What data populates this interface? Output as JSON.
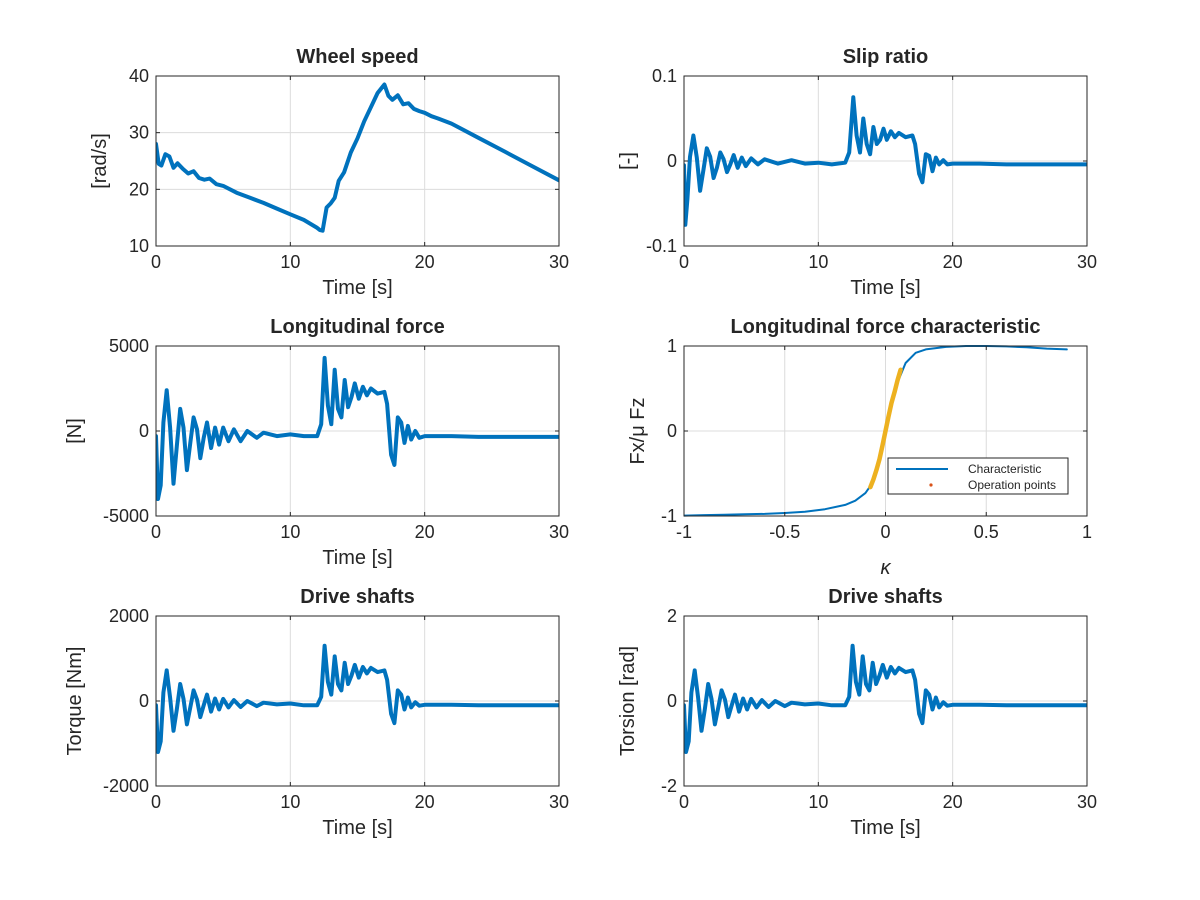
{
  "chart_data": [
    {
      "type": "line",
      "title": "Wheel speed",
      "xlabel": "Time [s]",
      "ylabel": "[rad/s]",
      "xlim": [
        0,
        30
      ],
      "ylim": [
        10,
        40
      ],
      "xticks": [
        0,
        10,
        20,
        30
      ],
      "yticks": [
        10,
        20,
        30,
        40
      ],
      "xtick_labels": [
        "0",
        "10",
        "20",
        "30"
      ],
      "ytick_labels": [
        "10",
        "20",
        "30",
        "40"
      ],
      "grid": true,
      "color": "#0072BD",
      "series": [
        {
          "x": [
            0,
            0.2,
            0.4,
            0.7,
            1.0,
            1.3,
            1.6,
            2.0,
            2.4,
            2.8,
            3.2,
            3.6,
            4.0,
            4.5,
            5.0,
            6,
            7,
            8,
            9,
            10,
            11,
            12,
            12.2,
            12.4,
            12.7,
            13.0,
            13.3,
            13.6,
            14.0,
            14.5,
            15.0,
            15.5,
            16.0,
            16.5,
            17.0,
            17.3,
            17.6,
            18.0,
            18.4,
            18.8,
            19.2,
            19.6,
            20.0,
            20.5,
            21,
            22,
            24,
            26,
            28,
            30
          ],
          "y": [
            28,
            24.5,
            24.2,
            26.2,
            25.8,
            23.8,
            24.6,
            23.6,
            22.8,
            23.2,
            22.0,
            21.7,
            21.9,
            20.9,
            20.6,
            19.4,
            18.5,
            17.6,
            16.6,
            15.6,
            14.6,
            13.2,
            12.8,
            12.7,
            16.8,
            17.5,
            18.5,
            21.5,
            23.0,
            26.5,
            29.0,
            32.0,
            34.5,
            37.0,
            38.5,
            36.5,
            35.8,
            36.6,
            35.0,
            35.2,
            34.2,
            33.8,
            33.5,
            32.9,
            32.5,
            31.6,
            29.1,
            26.6,
            24.1,
            21.6
          ]
        }
      ]
    },
    {
      "type": "line",
      "title": "Slip ratio",
      "xlabel": "Time [s]",
      "ylabel": "[-]",
      "xlim": [
        0,
        30
      ],
      "ylim": [
        -0.1,
        0.1
      ],
      "xticks": [
        0,
        10,
        20,
        30
      ],
      "yticks": [
        -0.1,
        0,
        0.1
      ],
      "xtick_labels": [
        "0",
        "10",
        "20",
        "30"
      ],
      "ytick_labels": [
        "-0.1",
        "0",
        "0.1"
      ],
      "grid": true,
      "color": "#0072BD",
      "series": [
        {
          "x": [
            0,
            0.1,
            0.25,
            0.45,
            0.7,
            0.95,
            1.2,
            1.45,
            1.7,
            1.95,
            2.2,
            2.45,
            2.7,
            2.95,
            3.2,
            3.45,
            3.7,
            4.0,
            4.3,
            4.6,
            5.0,
            5.5,
            6,
            7,
            8,
            9,
            10,
            11,
            12.0,
            12.3,
            12.6,
            12.85,
            13.1,
            13.35,
            13.6,
            13.85,
            14.1,
            14.35,
            14.6,
            14.85,
            15.1,
            15.4,
            15.7,
            16.0,
            16.5,
            17.0,
            17.2,
            17.5,
            17.75,
            18.0,
            18.25,
            18.5,
            18.75,
            19.0,
            19.3,
            19.6,
            20,
            21,
            22,
            24,
            26,
            28,
            30
          ],
          "y": [
            -0.005,
            -0.075,
            -0.045,
            0.005,
            0.03,
            0.004,
            -0.035,
            -0.01,
            0.015,
            0.005,
            -0.02,
            -0.008,
            0.01,
            0.002,
            -0.013,
            -0.004,
            0.007,
            -0.008,
            0.004,
            -0.006,
            0.003,
            -0.004,
            0.002,
            -0.003,
            0.001,
            -0.003,
            -0.002,
            -0.004,
            -0.002,
            0.01,
            0.075,
            0.03,
            0.01,
            0.05,
            0.02,
            0.008,
            0.04,
            0.02,
            0.025,
            0.038,
            0.025,
            0.035,
            0.028,
            0.033,
            0.028,
            0.03,
            0.02,
            -0.015,
            -0.025,
            0.008,
            0.006,
            -0.012,
            0.004,
            -0.004,
            0.001,
            -0.004,
            -0.003,
            -0.003,
            -0.003,
            -0.004,
            -0.004,
            -0.004,
            -0.004
          ]
        }
      ]
    },
    {
      "type": "line",
      "title": "Longitudinal force",
      "xlabel": "Time [s]",
      "ylabel": "[N]",
      "xlim": [
        0,
        30
      ],
      "ylim": [
        -5000,
        5000
      ],
      "xticks": [
        0,
        10,
        20,
        30
      ],
      "yticks": [
        -5000,
        0,
        5000
      ],
      "xtick_labels": [
        "0",
        "10",
        "20",
        "30"
      ],
      "ytick_labels": [
        "-5000",
        "0",
        "5000"
      ],
      "grid": true,
      "color": "#0072BD",
      "series": [
        {
          "x": [
            0,
            0.15,
            0.35,
            0.55,
            0.8,
            1.05,
            1.3,
            1.55,
            1.8,
            2.05,
            2.3,
            2.55,
            2.8,
            3.05,
            3.3,
            3.55,
            3.8,
            4.1,
            4.4,
            4.7,
            5.0,
            5.4,
            5.8,
            6.3,
            6.8,
            7.5,
            8,
            9,
            10,
            11,
            12.0,
            12.3,
            12.55,
            12.8,
            13.05,
            13.3,
            13.55,
            13.8,
            14.05,
            14.3,
            14.55,
            14.8,
            15.1,
            15.4,
            15.7,
            16.0,
            16.5,
            17.0,
            17.2,
            17.5,
            17.75,
            18.0,
            18.25,
            18.5,
            18.75,
            19.0,
            19.3,
            19.6,
            20,
            21,
            22,
            24,
            26,
            28,
            30
          ],
          "y": [
            -300,
            -4000,
            -3200,
            500,
            2400,
            200,
            -3100,
            -900,
            1300,
            200,
            -2300,
            -700,
            800,
            100,
            -1600,
            -400,
            500,
            -1000,
            200,
            -800,
            200,
            -600,
            100,
            -600,
            0,
            -400,
            -100,
            -300,
            -200,
            -300,
            -300,
            400,
            4300,
            1500,
            400,
            3600,
            1300,
            800,
            3000,
            1400,
            2000,
            2800,
            1900,
            2600,
            2100,
            2500,
            2200,
            2300,
            1600,
            -1400,
            -2000,
            800,
            500,
            -700,
            300,
            -500,
            0,
            -400,
            -300,
            -300,
            -300,
            -350,
            -350,
            -350,
            -350
          ]
        }
      ]
    },
    {
      "type": "line",
      "title": "Longitudinal force characteristic",
      "xlabel": "κ",
      "ylabel": "Fx/μ Fz",
      "xlim": [
        -1,
        1
      ],
      "ylim": [
        -1,
        1
      ],
      "xticks": [
        -1,
        -0.5,
        0,
        0.5,
        1
      ],
      "yticks": [
        -1,
        0,
        1
      ],
      "xtick_labels": [
        "-1",
        "-0.5",
        "0",
        "0.5",
        "1"
      ],
      "ytick_labels": [
        "-1",
        "0",
        "1"
      ],
      "grid": true,
      "legend": {
        "entries": [
          "Characteristic",
          "Operation points"
        ],
        "location": "lower-right"
      },
      "series": [
        {
          "name": "Characteristic",
          "color": "#0072BD",
          "x": [
            -1,
            -0.9,
            -0.8,
            -0.7,
            -0.6,
            -0.5,
            -0.4,
            -0.3,
            -0.2,
            -0.15,
            -0.1,
            -0.07,
            -0.05,
            -0.03,
            -0.01,
            0,
            0.01,
            0.03,
            0.05,
            0.07,
            0.1,
            0.15,
            0.2,
            0.3,
            0.4,
            0.5,
            0.6,
            0.7,
            0.8,
            0.9
          ],
          "y": [
            -0.995,
            -0.99,
            -0.985,
            -0.98,
            -0.975,
            -0.965,
            -0.95,
            -0.92,
            -0.87,
            -0.82,
            -0.73,
            -0.63,
            -0.5,
            -0.33,
            -0.12,
            0,
            0.12,
            0.33,
            0.5,
            0.63,
            0.8,
            0.92,
            0.96,
            0.99,
            1.0,
            1.0,
            0.995,
            0.985,
            0.97,
            0.96
          ]
        },
        {
          "name": "Operation points",
          "color": "#EDB120",
          "marker_color": "#D95319",
          "x": [
            -0.075,
            -0.06,
            -0.045,
            -0.03,
            -0.015,
            0,
            0.015,
            0.03,
            0.045,
            0.06,
            0.075
          ],
          "y": [
            -0.66,
            -0.57,
            -0.46,
            -0.33,
            -0.17,
            0,
            0.17,
            0.33,
            0.46,
            0.6,
            0.72
          ]
        }
      ]
    },
    {
      "type": "line",
      "title": "Drive shafts",
      "xlabel": "Time [s]",
      "ylabel": "Torque [Nm]",
      "xlim": [
        0,
        30
      ],
      "ylim": [
        -2000,
        2000
      ],
      "xticks": [
        0,
        10,
        20,
        30
      ],
      "yticks": [
        -2000,
        0,
        2000
      ],
      "xtick_labels": [
        "0",
        "10",
        "20",
        "30"
      ],
      "ytick_labels": [
        "-2000",
        "0",
        "2000"
      ],
      "grid": true,
      "color": "#0072BD",
      "series": [
        {
          "x": [
            0,
            0.15,
            0.35,
            0.55,
            0.8,
            1.05,
            1.3,
            1.55,
            1.8,
            2.05,
            2.3,
            2.55,
            2.8,
            3.05,
            3.3,
            3.55,
            3.8,
            4.1,
            4.4,
            4.7,
            5.0,
            5.4,
            5.8,
            6.3,
            6.8,
            7.5,
            8,
            9,
            10,
            11,
            12.0,
            12.3,
            12.55,
            12.8,
            13.05,
            13.3,
            13.55,
            13.8,
            14.05,
            14.3,
            14.55,
            14.8,
            15.1,
            15.4,
            15.7,
            16.0,
            16.5,
            17.0,
            17.2,
            17.5,
            17.75,
            18.0,
            18.25,
            18.5,
            18.75,
            19.0,
            19.3,
            19.6,
            20,
            21,
            22,
            24,
            26,
            28,
            30
          ],
          "y": [
            -100,
            -1200,
            -950,
            200,
            720,
            80,
            -700,
            -200,
            400,
            50,
            -550,
            -150,
            250,
            30,
            -380,
            -100,
            150,
            -250,
            60,
            -200,
            50,
            -150,
            20,
            -140,
            0,
            -120,
            -40,
            -80,
            -60,
            -100,
            -100,
            100,
            1300,
            450,
            150,
            1050,
            400,
            250,
            900,
            400,
            600,
            850,
            550,
            800,
            650,
            780,
            680,
            720,
            500,
            -300,
            -520,
            250,
            150,
            -200,
            80,
            -150,
            -30,
            -110,
            -90,
            -90,
            -90,
            -100,
            -100,
            -100,
            -100
          ]
        }
      ]
    },
    {
      "type": "line",
      "title": "Drive shafts",
      "xlabel": "Time [s]",
      "ylabel": "Torsion [rad]",
      "xlim": [
        0,
        30
      ],
      "ylim": [
        -2,
        2
      ],
      "xticks": [
        0,
        10,
        20,
        30
      ],
      "yticks": [
        -2,
        0,
        2
      ],
      "xtick_labels": [
        "0",
        "10",
        "20",
        "30"
      ],
      "ytick_labels": [
        "-2",
        "0",
        "2"
      ],
      "grid": true,
      "color": "#0072BD",
      "series": [
        {
          "x": [
            0,
            0.15,
            0.35,
            0.55,
            0.8,
            1.05,
            1.3,
            1.55,
            1.8,
            2.05,
            2.3,
            2.55,
            2.8,
            3.05,
            3.3,
            3.55,
            3.8,
            4.1,
            4.4,
            4.7,
            5.0,
            5.4,
            5.8,
            6.3,
            6.8,
            7.5,
            8,
            9,
            10,
            11,
            12.0,
            12.3,
            12.55,
            12.8,
            13.05,
            13.3,
            13.55,
            13.8,
            14.05,
            14.3,
            14.55,
            14.8,
            15.1,
            15.4,
            15.7,
            16.0,
            16.5,
            17.0,
            17.2,
            17.5,
            17.75,
            18.0,
            18.25,
            18.5,
            18.75,
            19.0,
            19.3,
            19.6,
            20,
            21,
            22,
            24,
            26,
            28,
            30
          ],
          "y": [
            -0.1,
            -1.2,
            -0.95,
            0.2,
            0.72,
            0.08,
            -0.7,
            -0.2,
            0.4,
            0.05,
            -0.55,
            -0.15,
            0.25,
            0.03,
            -0.38,
            -0.1,
            0.15,
            -0.25,
            0.06,
            -0.2,
            0.05,
            -0.15,
            0.02,
            -0.14,
            0,
            -0.12,
            -0.04,
            -0.08,
            -0.06,
            -0.1,
            -0.1,
            0.1,
            1.3,
            0.45,
            0.15,
            1.05,
            0.4,
            0.25,
            0.9,
            0.4,
            0.6,
            0.85,
            0.55,
            0.8,
            0.65,
            0.78,
            0.68,
            0.72,
            0.5,
            -0.3,
            -0.52,
            0.25,
            0.15,
            -0.2,
            0.08,
            -0.15,
            -0.03,
            -0.11,
            -0.09,
            -0.09,
            -0.09,
            -0.1,
            -0.1,
            -0.1,
            -0.1
          ]
        }
      ]
    }
  ]
}
